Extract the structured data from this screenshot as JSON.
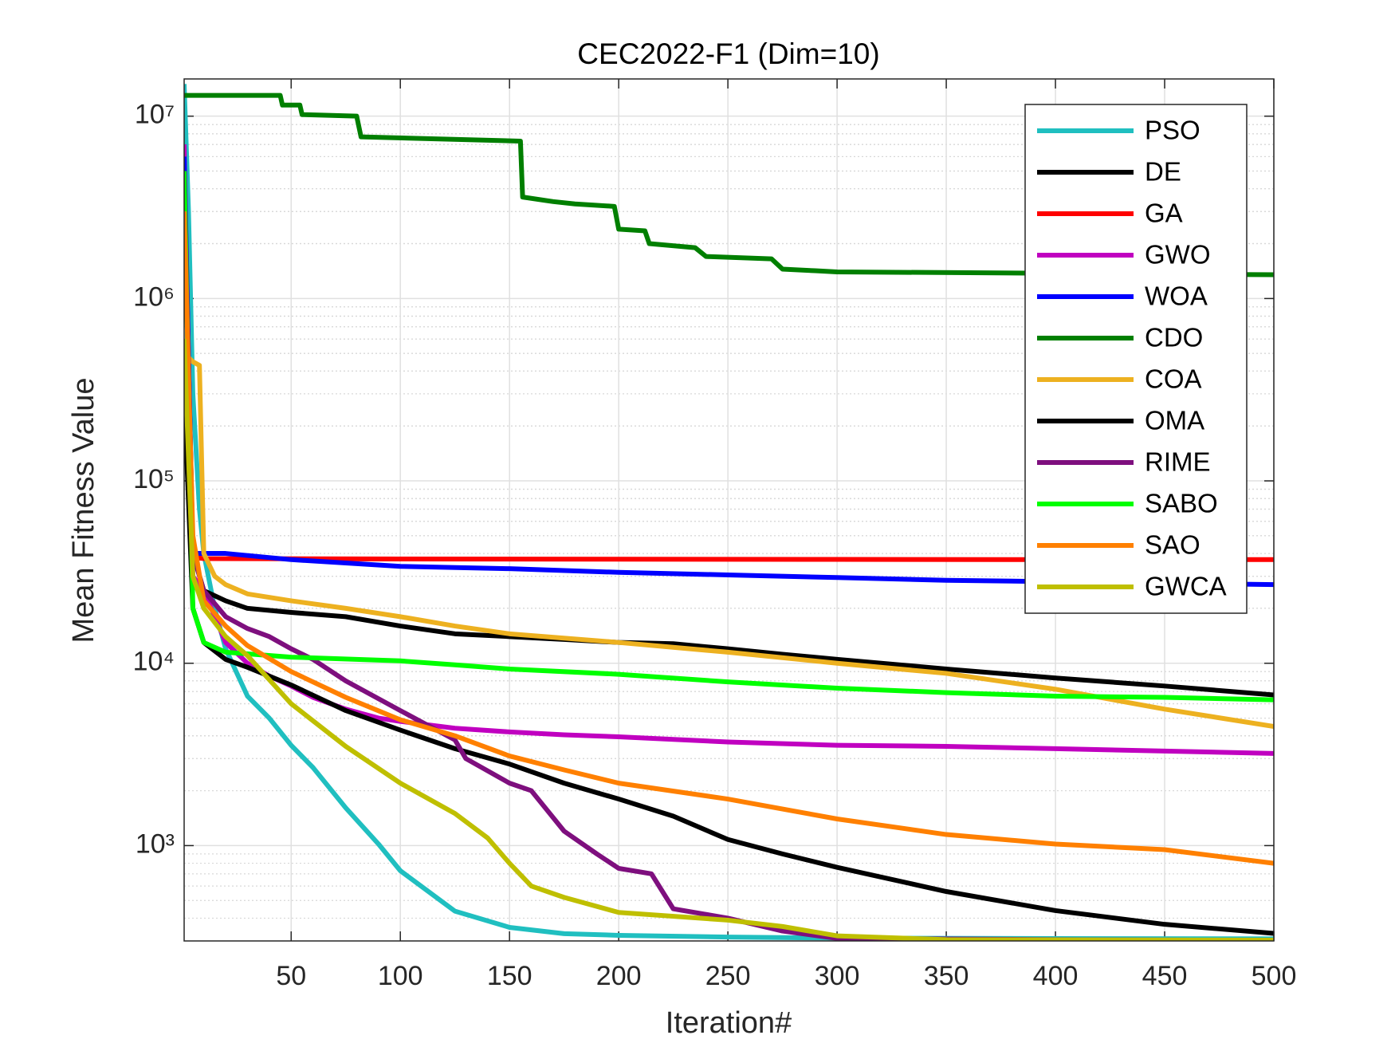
{
  "chart_data": {
    "type": "line",
    "title": "CEC2022-F1 (Dim=10)",
    "x_label": "Iteration#",
    "y_label": "Mean Fitness Value",
    "log_y": true,
    "grid": true,
    "minor_grid": true,
    "legend_location": "northeast",
    "xlim": [
      1,
      500
    ],
    "xticks": [
      50,
      100,
      150,
      200,
      250,
      300,
      350,
      400,
      450,
      500
    ],
    "ylim": [
      300,
      16000000
    ],
    "yticks": [
      {
        "value": 1000,
        "label": "10³"
      },
      {
        "value": 10000,
        "label": "10⁴"
      },
      {
        "value": 100000,
        "label": "10⁵"
      },
      {
        "value": 1000000,
        "label": "10⁶"
      },
      {
        "value": 10000000,
        "label": "10⁷"
      }
    ],
    "series": [
      {
        "name": "PSO",
        "color": "#20BFC0",
        "x": [
          1,
          3,
          5,
          8,
          10,
          15,
          20,
          30,
          40,
          50,
          60,
          75,
          90,
          100,
          125,
          150,
          175,
          200,
          250,
          300,
          400,
          500
        ],
        "values": [
          15000000,
          3000000,
          300000,
          70000,
          40000,
          20000,
          12000,
          6600,
          5000,
          3550,
          2680,
          1610,
          1020,
          728,
          437,
          356,
          329,
          322,
          315,
          311,
          309,
          308
        ]
      },
      {
        "name": "DE",
        "color": "#000000",
        "x": [
          1,
          5,
          10,
          20,
          30,
          50,
          75,
          100,
          125,
          150,
          175,
          200,
          225,
          250,
          275,
          300,
          350,
          400,
          450,
          500
        ],
        "values": [
          5000000,
          40000,
          25000,
          22000,
          20000,
          19000,
          18000,
          16000,
          14500,
          14000,
          13500,
          13000,
          12800,
          12000,
          11200,
          10500,
          9300,
          8300,
          7500,
          6700
        ]
      },
      {
        "name": "GA",
        "color": "#FF0000",
        "x": [
          1,
          5,
          10,
          100,
          200,
          300,
          400,
          500
        ],
        "values": [
          4000000,
          38000,
          37500,
          37300,
          37200,
          37100,
          37000,
          37000
        ]
      },
      {
        "name": "GWO",
        "color": "#C000C0",
        "x": [
          1,
          5,
          10,
          20,
          30,
          40,
          50,
          60,
          75,
          90,
          100,
          125,
          150,
          175,
          200,
          250,
          300,
          350,
          400,
          450,
          500
        ],
        "values": [
          7000000,
          30000,
          25000,
          13000,
          10000,
          8500,
          7500,
          6500,
          5600,
          5000,
          4800,
          4400,
          4200,
          4050,
          3950,
          3700,
          3550,
          3500,
          3400,
          3300,
          3200
        ]
      },
      {
        "name": "WOA",
        "color": "#0000FF",
        "x": [
          1,
          5,
          20,
          50,
          100,
          150,
          200,
          250,
          300,
          350,
          400,
          450,
          500
        ],
        "values": [
          6000000,
          40000,
          40000,
          37000,
          34000,
          33000,
          31500,
          30500,
          29500,
          28500,
          28000,
          27500,
          27000
        ]
      },
      {
        "name": "CDO",
        "color": "#007F00",
        "x": [
          1,
          45,
          46,
          54,
          55,
          80,
          82,
          155,
          156,
          170,
          180,
          198,
          200,
          212,
          214,
          235,
          240,
          270,
          275,
          290,
          300,
          500
        ],
        "values": [
          13000000,
          13000000,
          11500000,
          11500000,
          10200000,
          10000000,
          7700000,
          7300000,
          3600000,
          3400000,
          3300000,
          3200000,
          2400000,
          2350000,
          2000000,
          1900000,
          1700000,
          1650000,
          1450000,
          1420000,
          1400000,
          1350000
        ]
      },
      {
        "name": "COA",
        "color": "#EDB120",
        "x": [
          1,
          5,
          8,
          10,
          15,
          20,
          30,
          50,
          75,
          100,
          125,
          150,
          200,
          250,
          300,
          350,
          400,
          450,
          500
        ],
        "values": [
          500000,
          450000,
          430000,
          40000,
          30000,
          27000,
          24000,
          22000,
          20000,
          18000,
          16000,
          14500,
          13000,
          11500,
          10000,
          8800,
          7200,
          5600,
          4500
        ]
      },
      {
        "name": "OMA",
        "color": "#000000",
        "x": [
          1,
          5,
          10,
          20,
          30,
          50,
          75,
          100,
          125,
          150,
          175,
          200,
          225,
          250,
          275,
          300,
          350,
          400,
          450,
          500
        ],
        "values": [
          300000,
          20000,
          13000,
          10500,
          9500,
          7600,
          5500,
          4300,
          3400,
          2800,
          2200,
          1800,
          1450,
          1080,
          900,
          760,
          560,
          440,
          370,
          330
        ]
      },
      {
        "name": "RIME",
        "color": "#7E0F7E",
        "x": [
          1,
          5,
          10,
          20,
          30,
          40,
          50,
          60,
          75,
          100,
          125,
          130,
          150,
          160,
          175,
          190,
          200,
          215,
          225,
          250,
          275,
          300,
          400,
          500
        ],
        "values": [
          5000000,
          40000,
          25000,
          18000,
          15500,
          14000,
          12000,
          10500,
          8000,
          5500,
          3800,
          3000,
          2200,
          2000,
          1200,
          900,
          750,
          700,
          450,
          400,
          340,
          310,
          305,
          302
        ]
      },
      {
        "name": "SABO",
        "color": "#00FF00",
        "x": [
          1,
          5,
          10,
          20,
          50,
          100,
          125,
          150,
          200,
          250,
          300,
          350,
          400,
          450,
          500
        ],
        "values": [
          5000000,
          20000,
          13000,
          11500,
          10800,
          10300,
          9800,
          9300,
          8700,
          7900,
          7300,
          6900,
          6600,
          6500,
          6300
        ]
      },
      {
        "name": "SAO",
        "color": "#FF8000",
        "x": [
          1,
          5,
          10,
          20,
          30,
          50,
          75,
          100,
          125,
          150,
          175,
          200,
          250,
          300,
          350,
          400,
          450,
          500
        ],
        "values": [
          3000000,
          50000,
          22000,
          16000,
          12500,
          9000,
          6500,
          4900,
          4000,
          3100,
          2600,
          2200,
          1800,
          1400,
          1150,
          1020,
          950,
          800
        ]
      },
      {
        "name": "GWCA",
        "color": "#BFBF00",
        "x": [
          1,
          5,
          10,
          20,
          30,
          50,
          75,
          100,
          125,
          140,
          150,
          160,
          175,
          200,
          250,
          275,
          300,
          350,
          500
        ],
        "values": [
          600000,
          30000,
          20000,
          14000,
          11000,
          6000,
          3500,
          2200,
          1500,
          1100,
          800,
          600,
          520,
          430,
          390,
          360,
          320,
          305,
          303
        ]
      }
    ]
  }
}
